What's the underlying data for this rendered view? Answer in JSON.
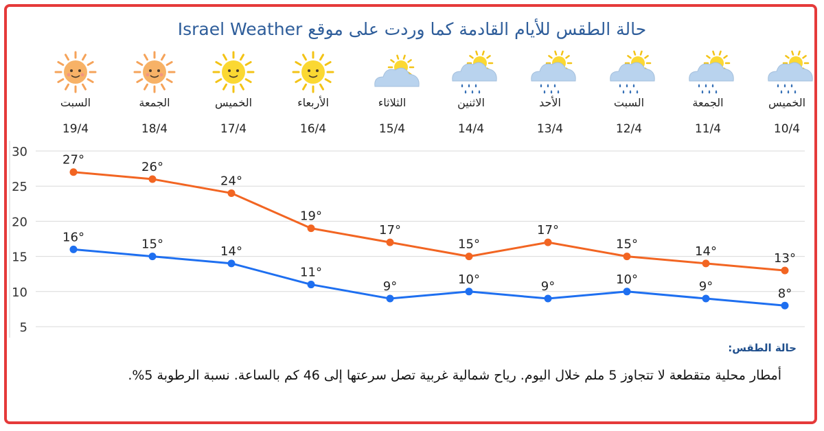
{
  "title": "حالة الطقس للأيام القادمة كما وردت على موقع Israel Weather",
  "days": [
    {
      "name": "السبت",
      "date": "19/4",
      "icon": "sun-icon"
    },
    {
      "name": "الجمعة",
      "date": "18/4",
      "icon": "sun-icon"
    },
    {
      "name": "الخميس",
      "date": "17/4",
      "icon": "sun-icon"
    },
    {
      "name": "الأربعاء",
      "date": "16/4",
      "icon": "sun-icon"
    },
    {
      "name": "الثلاثاء",
      "date": "15/4",
      "icon": "partly-cloudy-icon"
    },
    {
      "name": "الاثنين",
      "date": "14/4",
      "icon": "rain-cloud-sun-icon"
    },
    {
      "name": "الأحد",
      "date": "13/4",
      "icon": "rain-cloud-sun-icon"
    },
    {
      "name": "السبت",
      "date": "12/4",
      "icon": "rain-cloud-sun-icon"
    },
    {
      "name": "الجمعة",
      "date": "11/4",
      "icon": "rain-cloud-sun-icon"
    },
    {
      "name": "الخميس",
      "date": "10/4",
      "icon": "rain-cloud-sun-icon"
    }
  ],
  "chart_data": {
    "type": "line",
    "x": [
      "19/4",
      "18/4",
      "17/4",
      "16/4",
      "15/4",
      "14/4",
      "13/4",
      "12/4",
      "11/4",
      "10/4"
    ],
    "series": [
      {
        "values": [
          27,
          26,
          24,
          19,
          17,
          15,
          17,
          15,
          14,
          13
        ],
        "color": "#f26522",
        "labels": [
          "27°",
          "26°",
          "24°",
          "19°",
          "17°",
          "15°",
          "17°",
          "15°",
          "14°",
          "13°"
        ]
      },
      {
        "values": [
          16,
          15,
          14,
          11,
          9,
          10,
          9,
          10,
          9,
          8
        ],
        "color": "#1e6ff0",
        "labels": [
          "16°",
          "15°",
          "14°",
          "11°",
          "9°",
          "10°",
          "9°",
          "10°",
          "9°",
          "8°"
        ]
      }
    ],
    "ylim": [
      5,
      30
    ],
    "yticks": [
      "30",
      "25",
      "20",
      "15",
      "10",
      "5"
    ],
    "grid": true
  },
  "conditions": {
    "label": "حالة الطقس:",
    "text": "أمطار محلية متقطعة لا تتجاوز 5 ملم خلال اليوم. رياح شمالية غربية تصل سرعتها إلى 46 كم بالساعة. نسبة الرطوبة 5%."
  }
}
